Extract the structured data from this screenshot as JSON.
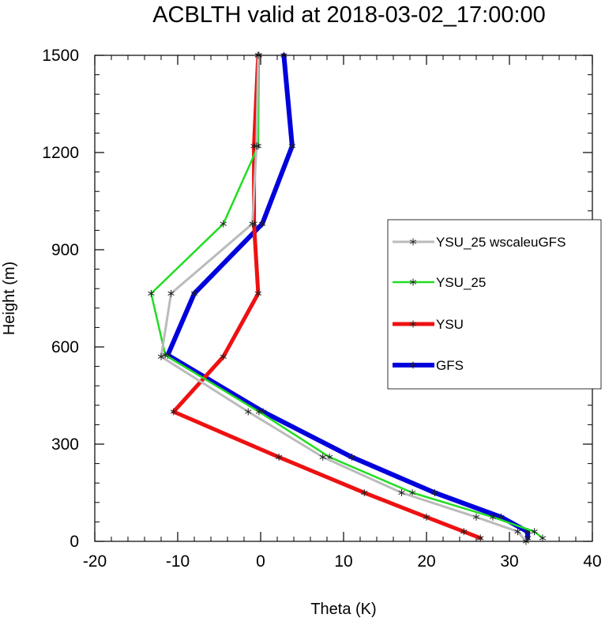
{
  "chart_data": {
    "type": "line",
    "title": "ACBLTH valid at 2018-03-02_17:00:00",
    "xlabel": "Theta (K)",
    "ylabel": "Height (m)",
    "xlim": [
      -20,
      40
    ],
    "ylim": [
      0,
      1500
    ],
    "xticks": [
      "-20",
      "-10",
      "0",
      "10",
      "20",
      "30",
      "40"
    ],
    "yticks": [
      "0",
      "300",
      "600",
      "900",
      "1200",
      "1500"
    ],
    "legend_position": "right",
    "series": [
      {
        "name": "YSU_25 wscaleuGFS",
        "color": "#bbbbbb",
        "marker": "asterisk",
        "points": [
          {
            "x": 32.0,
            "y": 0
          },
          {
            "x": 31.0,
            "y": 30
          },
          {
            "x": 26.0,
            "y": 75
          },
          {
            "x": 17.0,
            "y": 150
          },
          {
            "x": 7.5,
            "y": 260
          },
          {
            "x": -1.5,
            "y": 400
          },
          {
            "x": -12.0,
            "y": 570
          },
          {
            "x": -10.8,
            "y": 765
          },
          {
            "x": -1.0,
            "y": 980
          },
          {
            "x": -0.5,
            "y": 1220
          },
          {
            "x": -0.3,
            "y": 1500
          }
        ]
      },
      {
        "name": "YSU_25",
        "color": "#22dd22",
        "marker": "asterisk",
        "points": [
          {
            "x": 34.0,
            "y": 10
          },
          {
            "x": 33.0,
            "y": 30
          },
          {
            "x": 28.0,
            "y": 75
          },
          {
            "x": 18.3,
            "y": 150
          },
          {
            "x": 8.3,
            "y": 260
          },
          {
            "x": -0.2,
            "y": 400
          },
          {
            "x": -11.5,
            "y": 575
          },
          {
            "x": -13.2,
            "y": 765
          },
          {
            "x": -4.5,
            "y": 980
          },
          {
            "x": -0.3,
            "y": 1220
          },
          {
            "x": -0.2,
            "y": 1500
          }
        ]
      },
      {
        "name": "YSU",
        "color": "#ee1111",
        "marker": "asterisk",
        "points": [
          {
            "x": 26.5,
            "y": 10
          },
          {
            "x": 24.5,
            "y": 30
          },
          {
            "x": 20.0,
            "y": 75
          },
          {
            "x": 12.5,
            "y": 150
          },
          {
            "x": 2.2,
            "y": 260
          },
          {
            "x": -10.5,
            "y": 400
          },
          {
            "x": -4.5,
            "y": 570
          },
          {
            "x": -0.3,
            "y": 765
          },
          {
            "x": -0.8,
            "y": 980
          },
          {
            "x": -0.8,
            "y": 1220
          },
          {
            "x": -0.3,
            "y": 1500
          }
        ]
      },
      {
        "name": "GFS",
        "color": "#0000dd",
        "marker": "asterisk",
        "points": [
          {
            "x": 32.2,
            "y": 10
          },
          {
            "x": 32.2,
            "y": 30
          },
          {
            "x": 29.0,
            "y": 75
          },
          {
            "x": 21.0,
            "y": 150
          },
          {
            "x": 11.0,
            "y": 260
          },
          {
            "x": 0.3,
            "y": 400
          },
          {
            "x": -11.2,
            "y": 575
          },
          {
            "x": -8.0,
            "y": 765
          },
          {
            "x": 0.2,
            "y": 980
          },
          {
            "x": 3.8,
            "y": 1220
          },
          {
            "x": 2.8,
            "y": 1500
          }
        ]
      }
    ]
  }
}
